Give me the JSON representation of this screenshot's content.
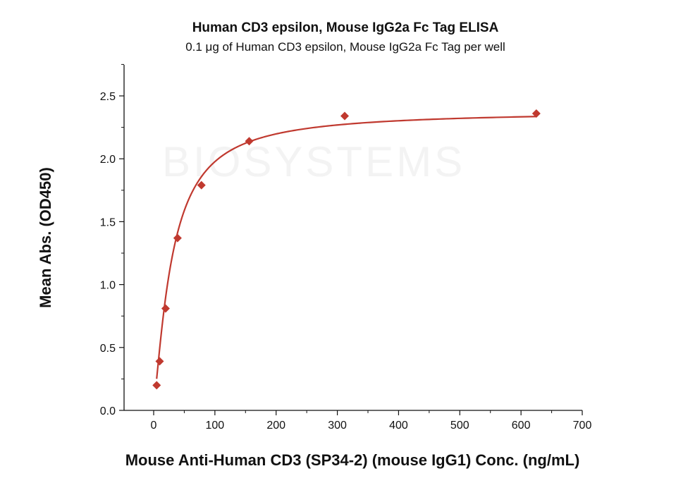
{
  "chart_data": {
    "type": "scatter",
    "title": "Human CD3 epsilon, Mouse IgG2a Fc Tag ELISA",
    "subtitle": "0.1 μg of Human CD3 epsilon, Mouse IgG2a Fc Tag per well",
    "xlabel": "Mouse Anti-Human CD3 (SP34-2) (mouse IgG1) Conc. (ng/mL)",
    "ylabel": "Mean Abs. (OD450)",
    "xlim": [
      -50,
      700
    ],
    "ylim": [
      0,
      2.75
    ],
    "xticks": [
      0,
      100,
      200,
      300,
      400,
      500,
      600,
      700
    ],
    "yticks": [
      "0.0",
      "0.5",
      "1.0",
      "1.5",
      "2.0",
      "2.5"
    ],
    "grid": false,
    "color": "#c0392f",
    "series": [
      {
        "name": "Mean Abs.",
        "x": [
          4.88,
          9.77,
          19.5,
          39,
          78,
          156,
          312,
          625
        ],
        "y": [
          0.2,
          0.39,
          0.81,
          1.37,
          1.79,
          2.14,
          2.34,
          2.36
        ]
      }
    ],
    "fit": {
      "model": "4PL",
      "bottom": 0.05,
      "top": 2.38,
      "ec50": 30,
      "hill": 1.3
    }
  }
}
